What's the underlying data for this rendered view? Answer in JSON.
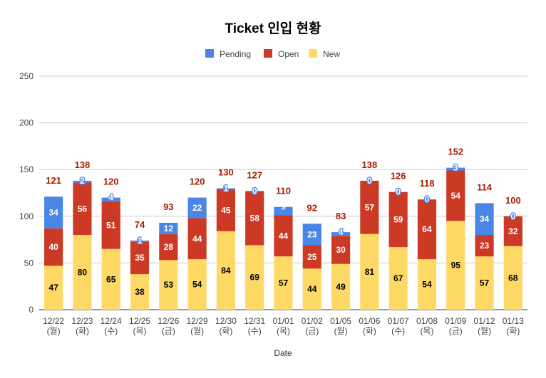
{
  "chart_data": {
    "type": "bar",
    "stacked": true,
    "title": "Ticket 인입 현황",
    "xlabel": "Date",
    "ylabel": "",
    "ylim": [
      0,
      250
    ],
    "yticks": [
      0,
      50,
      100,
      150,
      200,
      250
    ],
    "grid": true,
    "legend_position": "top",
    "categories": [
      [
        "12/22",
        "(월)"
      ],
      [
        "12/23",
        "(화)"
      ],
      [
        "12/24",
        "(수)"
      ],
      [
        "12/25",
        "(목)"
      ],
      [
        "12/26",
        "(금)"
      ],
      [
        "12/29",
        "(월)"
      ],
      [
        "12/30",
        "(화)"
      ],
      [
        "12/31",
        "(수)"
      ],
      [
        "01/01",
        "(목)"
      ],
      [
        "01/02",
        "(금)"
      ],
      [
        "01/05",
        "(월)"
      ],
      [
        "01/06",
        "(화)"
      ],
      [
        "01/07",
        "(수)"
      ],
      [
        "01/08",
        "(목)"
      ],
      [
        "01/09",
        "(금)"
      ],
      [
        "01/12",
        "(월)"
      ],
      [
        "01/13",
        "(화)"
      ]
    ],
    "series": [
      {
        "name": "New",
        "color": "#ffd966",
        "label_color": "#000000",
        "values": [
          47,
          80,
          65,
          38,
          53,
          54,
          84,
          69,
          57,
          44,
          49,
          81,
          67,
          54,
          95,
          57,
          68
        ]
      },
      {
        "name": "Open",
        "color": "#cc3a25",
        "label_color": "#ffffff",
        "values": [
          40,
          56,
          51,
          35,
          28,
          44,
          45,
          58,
          44,
          25,
          30,
          57,
          59,
          64,
          54,
          23,
          32
        ]
      },
      {
        "name": "Pending",
        "color": "#4a86e8",
        "label_color": "#ffffff",
        "values": [
          34,
          2,
          4,
          1,
          12,
          22,
          1,
          0,
          9,
          23,
          4,
          0,
          0,
          0,
          3,
          34,
          0
        ]
      }
    ],
    "legend_order": [
      "Pending",
      "Open",
      "New"
    ],
    "totals": [
      121,
      138,
      120,
      74,
      93,
      120,
      130,
      127,
      110,
      92,
      83,
      138,
      126,
      118,
      152,
      114,
      100
    ],
    "total_label_color": "#a61c00"
  }
}
